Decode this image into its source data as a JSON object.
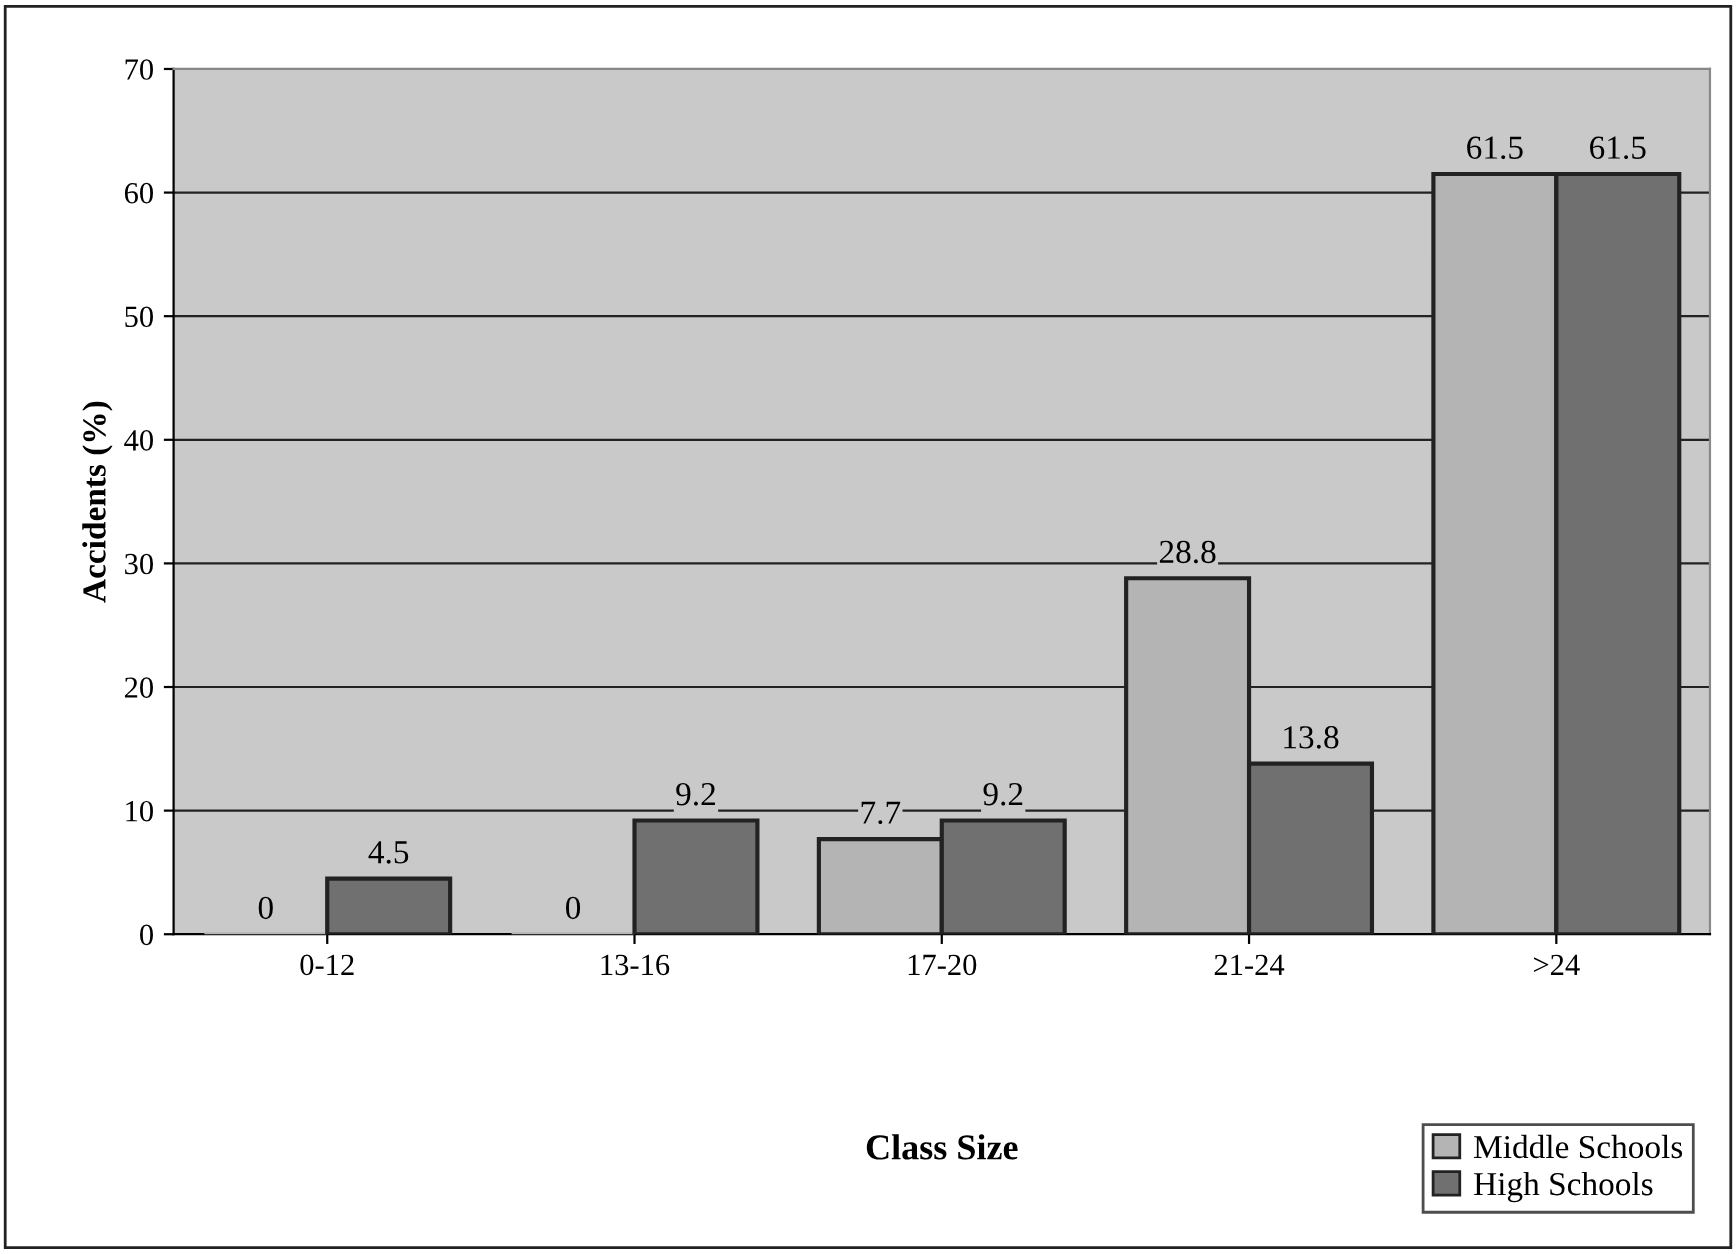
{
  "chart_data": {
    "type": "bar",
    "xlabel": "Class Size",
    "ylabel": "Accidents (%)",
    "categories": [
      "0-12",
      "13-16",
      "17-20",
      "21-24",
      ">24"
    ],
    "series": [
      {
        "name": "Middle Schools",
        "color": "#b4b4b4",
        "values": [
          0,
          0,
          7.7,
          28.8,
          61.5
        ]
      },
      {
        "name": "High Schools",
        "color": "#707070",
        "values": [
          4.5,
          9.2,
          9.2,
          13.8,
          61.5
        ]
      }
    ],
    "ylim": [
      0,
      70
    ],
    "yticks": [
      0,
      10,
      20,
      30,
      40,
      50,
      60,
      70
    ],
    "grid": "y",
    "legend": "bottom right",
    "data_labels": true
  }
}
